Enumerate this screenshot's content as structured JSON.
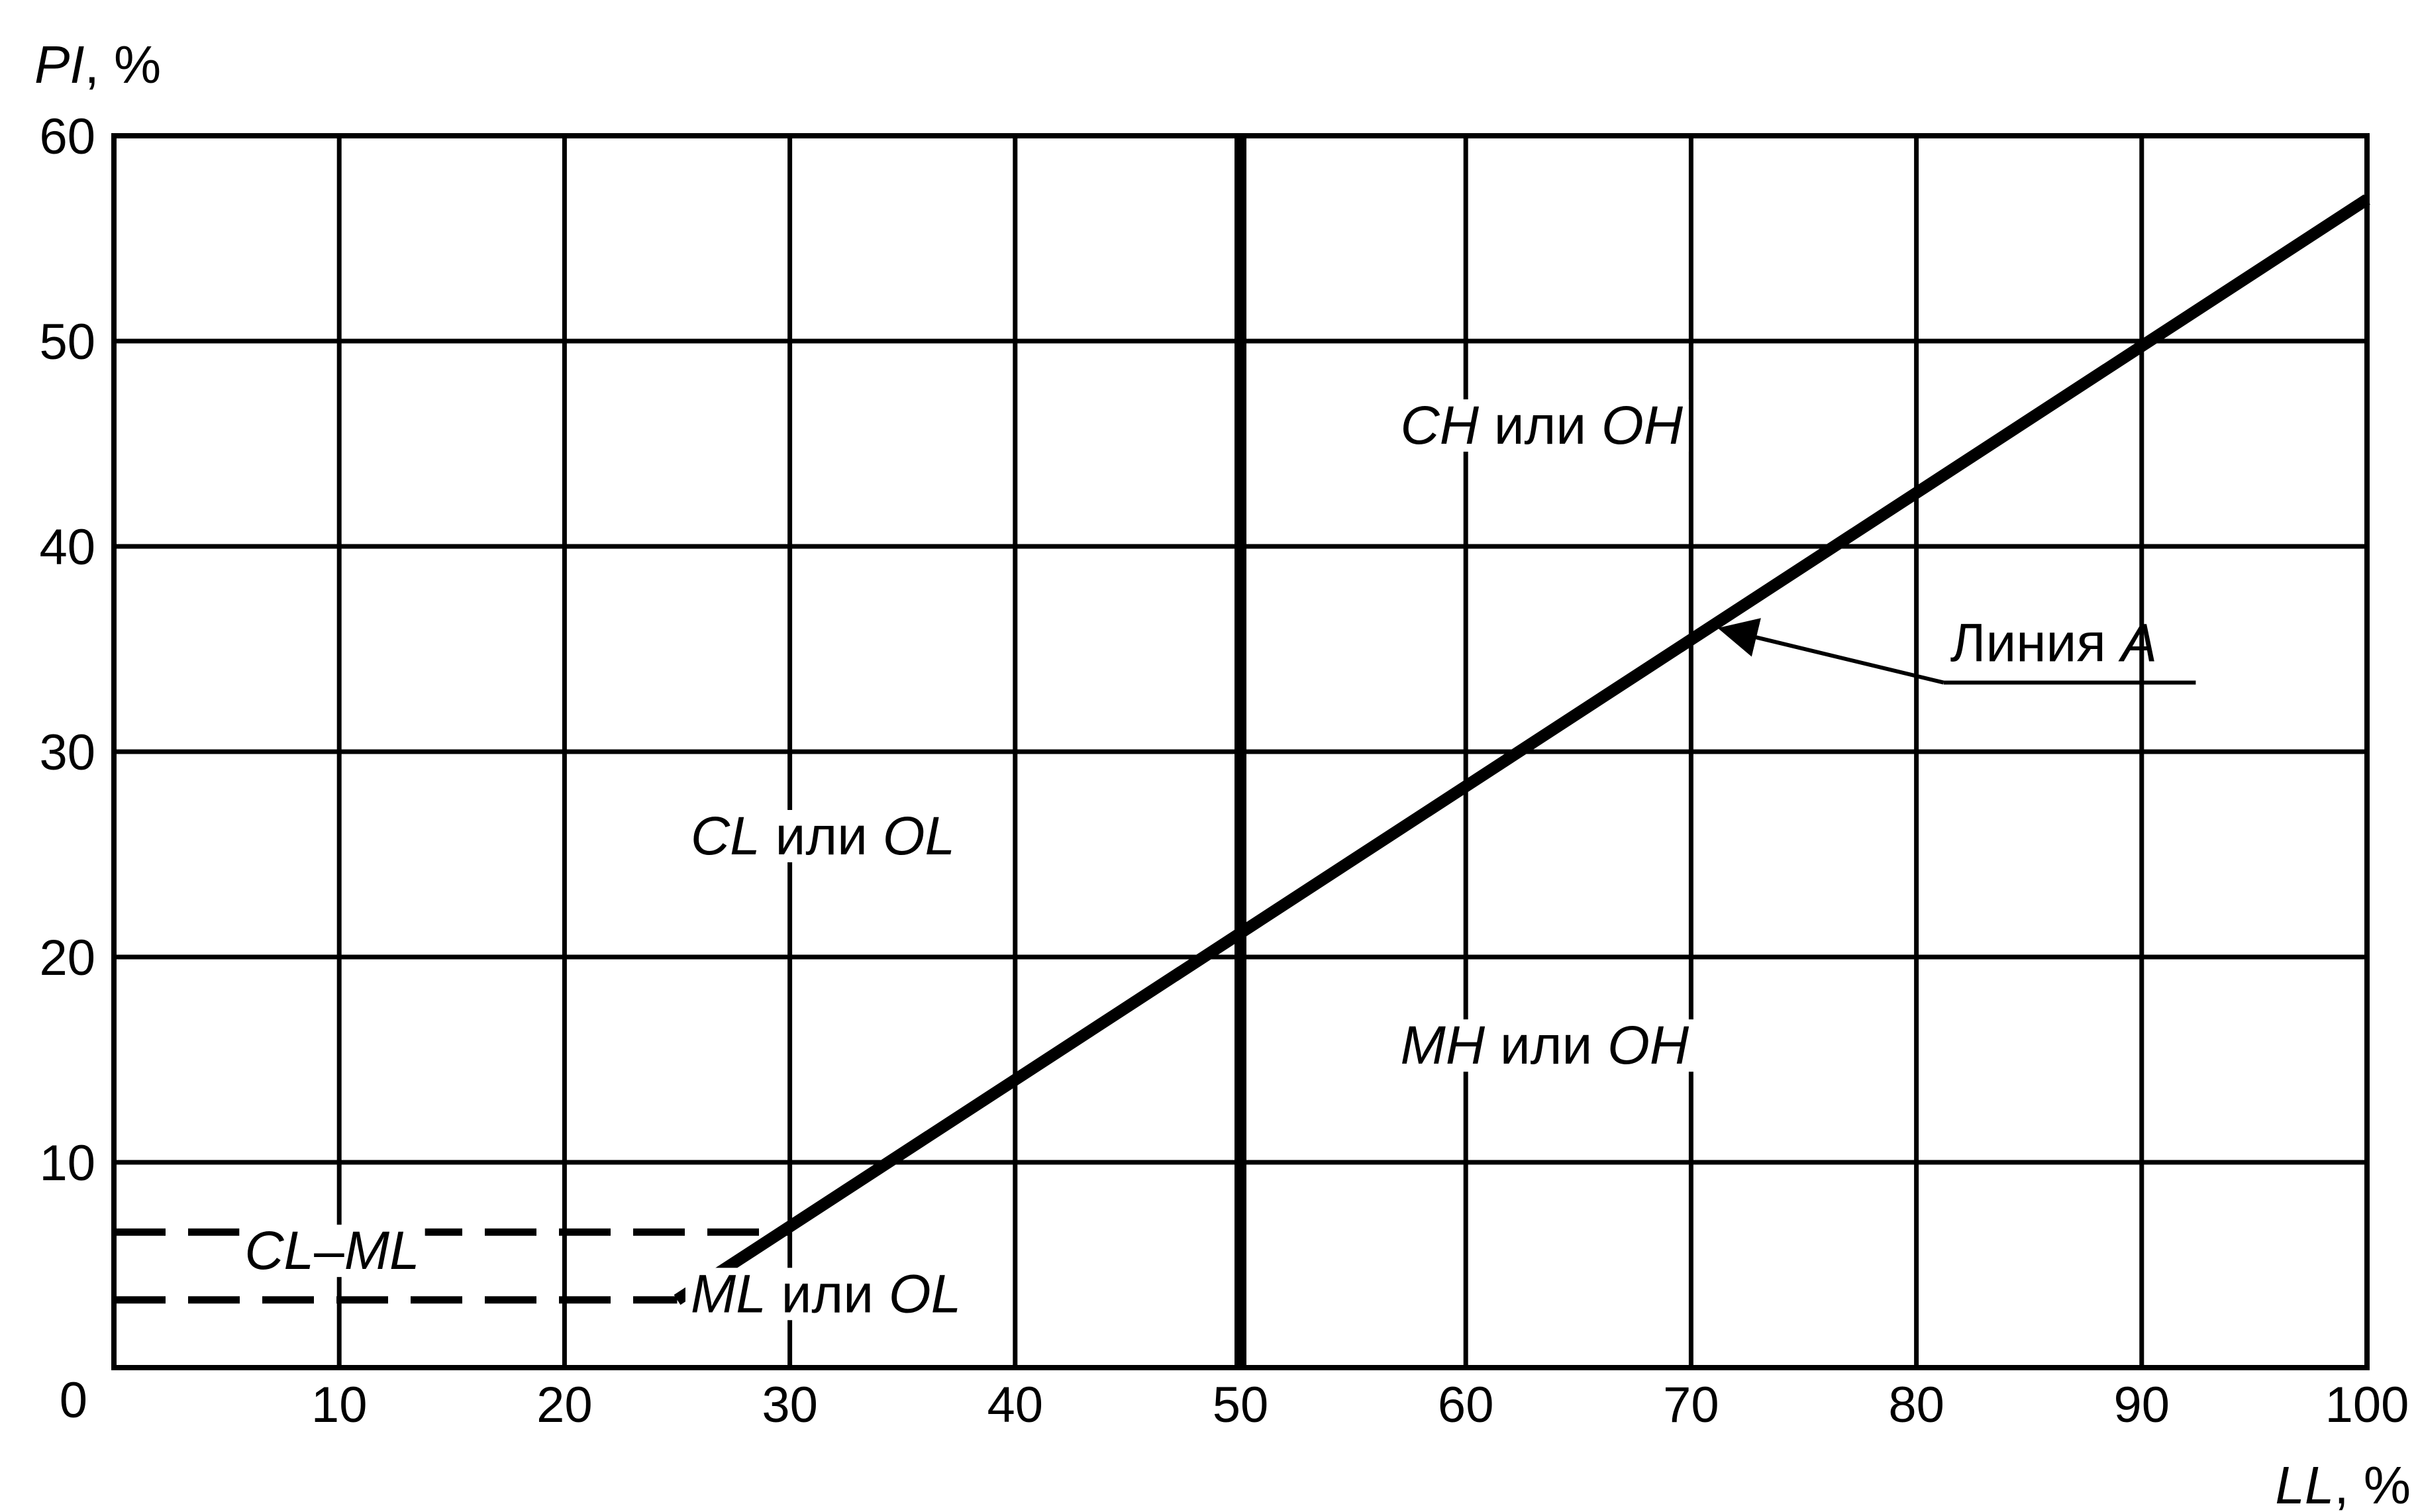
{
  "chart_data": {
    "type": "line",
    "xlabel": "LL, %",
    "ylabel": "PI, %",
    "xlim": [
      0,
      100
    ],
    "ylim": [
      0,
      60
    ],
    "x_ticks": [
      {
        "value": 0,
        "label": "0"
      },
      {
        "value": 10,
        "label": "10"
      },
      {
        "value": 20,
        "label": "20"
      },
      {
        "value": 30,
        "label": "30"
      },
      {
        "value": 40,
        "label": "40"
      },
      {
        "value": 50,
        "label": "50"
      },
      {
        "value": 60,
        "label": "60"
      },
      {
        "value": 70,
        "label": "70"
      },
      {
        "value": 80,
        "label": "80"
      },
      {
        "value": 90,
        "label": "90"
      },
      {
        "value": 100,
        "label": "100"
      }
    ],
    "y_ticks": [
      {
        "value": 10,
        "label": "10"
      },
      {
        "value": 20,
        "label": "20"
      },
      {
        "value": 30,
        "label": "30"
      },
      {
        "value": 40,
        "label": "40"
      },
      {
        "value": 50,
        "label": "50"
      },
      {
        "value": 60,
        "label": "60"
      }
    ],
    "grid": true,
    "line_a": {
      "label": "Линия A",
      "points": [
        [
          25,
          3.3
        ],
        [
          100,
          56.9
        ]
      ]
    },
    "ll_boundary": 50,
    "dashed_lines": [
      {
        "y": 6.6,
        "x_from": 0,
        "x_to": 30
      },
      {
        "y": 3.3,
        "x_from": 0,
        "x_to": 25
      }
    ],
    "region_labels": [
      {
        "id": "ch-oh",
        "italic_a": "CH",
        "plain": "или",
        "italic_b": "OH",
        "x": 57.1,
        "y": 45
      },
      {
        "id": "cl-ol",
        "italic_a": "CL",
        "plain": "или",
        "italic_b": "OL",
        "x": 25.6,
        "y": 25
      },
      {
        "id": "mh-oh",
        "italic_a": "MH",
        "plain": "или",
        "italic_b": "OH",
        "x": 57.1,
        "y": 14.8
      },
      {
        "id": "ml-ol",
        "italic_a": "ML",
        "plain": "или",
        "italic_b": "OL",
        "x": 25.6,
        "y": 2.7
      },
      {
        "id": "cl-ml",
        "italic_a": "CL",
        "plain": "–",
        "italic_b": "ML",
        "x": 5.8,
        "y": 4.8
      }
    ],
    "line_a_annotation_target": [
      71,
      36.3
    ],
    "line_a_label_position": [
      81.5,
      34.4
    ]
  }
}
